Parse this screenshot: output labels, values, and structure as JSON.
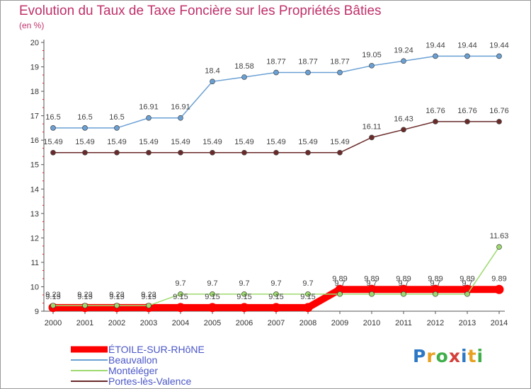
{
  "title": "Evolution du Taux de Taxe Foncière sur les Propriétés Bâties",
  "unit": "(en %)",
  "logo": {
    "text": "Proxiti",
    "colors": [
      "#2b78c6",
      "#e8a020",
      "#3fae49",
      "#d43f3a",
      "#2b78c6",
      "#e8a020",
      "#3fae49"
    ]
  },
  "chart_data": {
    "type": "line",
    "x": [
      2000,
      2001,
      2002,
      2003,
      2004,
      2005,
      2006,
      2007,
      2008,
      2009,
      2010,
      2011,
      2012,
      2013,
      2014
    ],
    "ylim": [
      9,
      20
    ],
    "yticks": [
      9,
      10,
      11,
      12,
      13,
      14,
      15,
      16,
      17,
      18,
      19,
      20
    ],
    "grid": false,
    "legend_position": "bottom-left",
    "series": [
      {
        "name": "ÉTOILE-SUR-RHôNE",
        "color": "#ff0000",
        "values": [
          9.15,
          9.15,
          9.15,
          9.15,
          9.15,
          9.15,
          9.15,
          9.15,
          9.15,
          9.89,
          9.89,
          9.89,
          9.89,
          9.89,
          9.89
        ],
        "labels": [
          "9.15",
          "9.15",
          "9.15",
          "9.15",
          "9.15",
          "9.15",
          "9.15",
          "9.15",
          "9.15",
          "9.89",
          "9.89",
          "9.89",
          "9.89",
          "9.89",
          "9.89"
        ]
      },
      {
        "name": "Beauvallon",
        "color": "#6aa0d4",
        "values": [
          16.5,
          16.5,
          16.5,
          16.91,
          16.91,
          18.4,
          18.58,
          18.77,
          18.77,
          18.77,
          19.05,
          19.24,
          19.44,
          19.44,
          19.44
        ],
        "labels": [
          "16.5",
          "16.5",
          "16.5",
          "16.91",
          "16.91",
          "18.4",
          "18.58",
          "18.77",
          "18.77",
          "18.77",
          "19.05",
          "19.24",
          "19.44",
          "19.44",
          "19.44"
        ]
      },
      {
        "name": "Montéléger",
        "color": "#9dda6e",
        "values": [
          9.23,
          9.23,
          9.23,
          9.23,
          9.7,
          9.7,
          9.7,
          9.7,
          9.7,
          9.7,
          9.7,
          9.7,
          9.7,
          9.7,
          11.63
        ],
        "labels": [
          "9.23",
          "9.23",
          "9.23",
          "9.23",
          "9.7",
          "9.7",
          "9.7",
          "9.7",
          "9.7",
          "9.7",
          "9.7",
          "9.7",
          "9.7",
          "9.7",
          "11.63"
        ]
      },
      {
        "name": "Portes-lès-Valence",
        "color": "#6b2a2a",
        "values": [
          15.49,
          15.49,
          15.49,
          15.49,
          15.49,
          15.49,
          15.49,
          15.49,
          15.49,
          15.49,
          16.11,
          16.43,
          16.76,
          16.76,
          16.76
        ],
        "labels": [
          "15.49",
          "15.49",
          "15.49",
          "15.49",
          "15.49",
          "15.49",
          "15.49",
          "15.49",
          "15.49",
          "15.49",
          "16.11",
          "16.43",
          "16.76",
          "16.76",
          "16.76"
        ]
      }
    ]
  }
}
